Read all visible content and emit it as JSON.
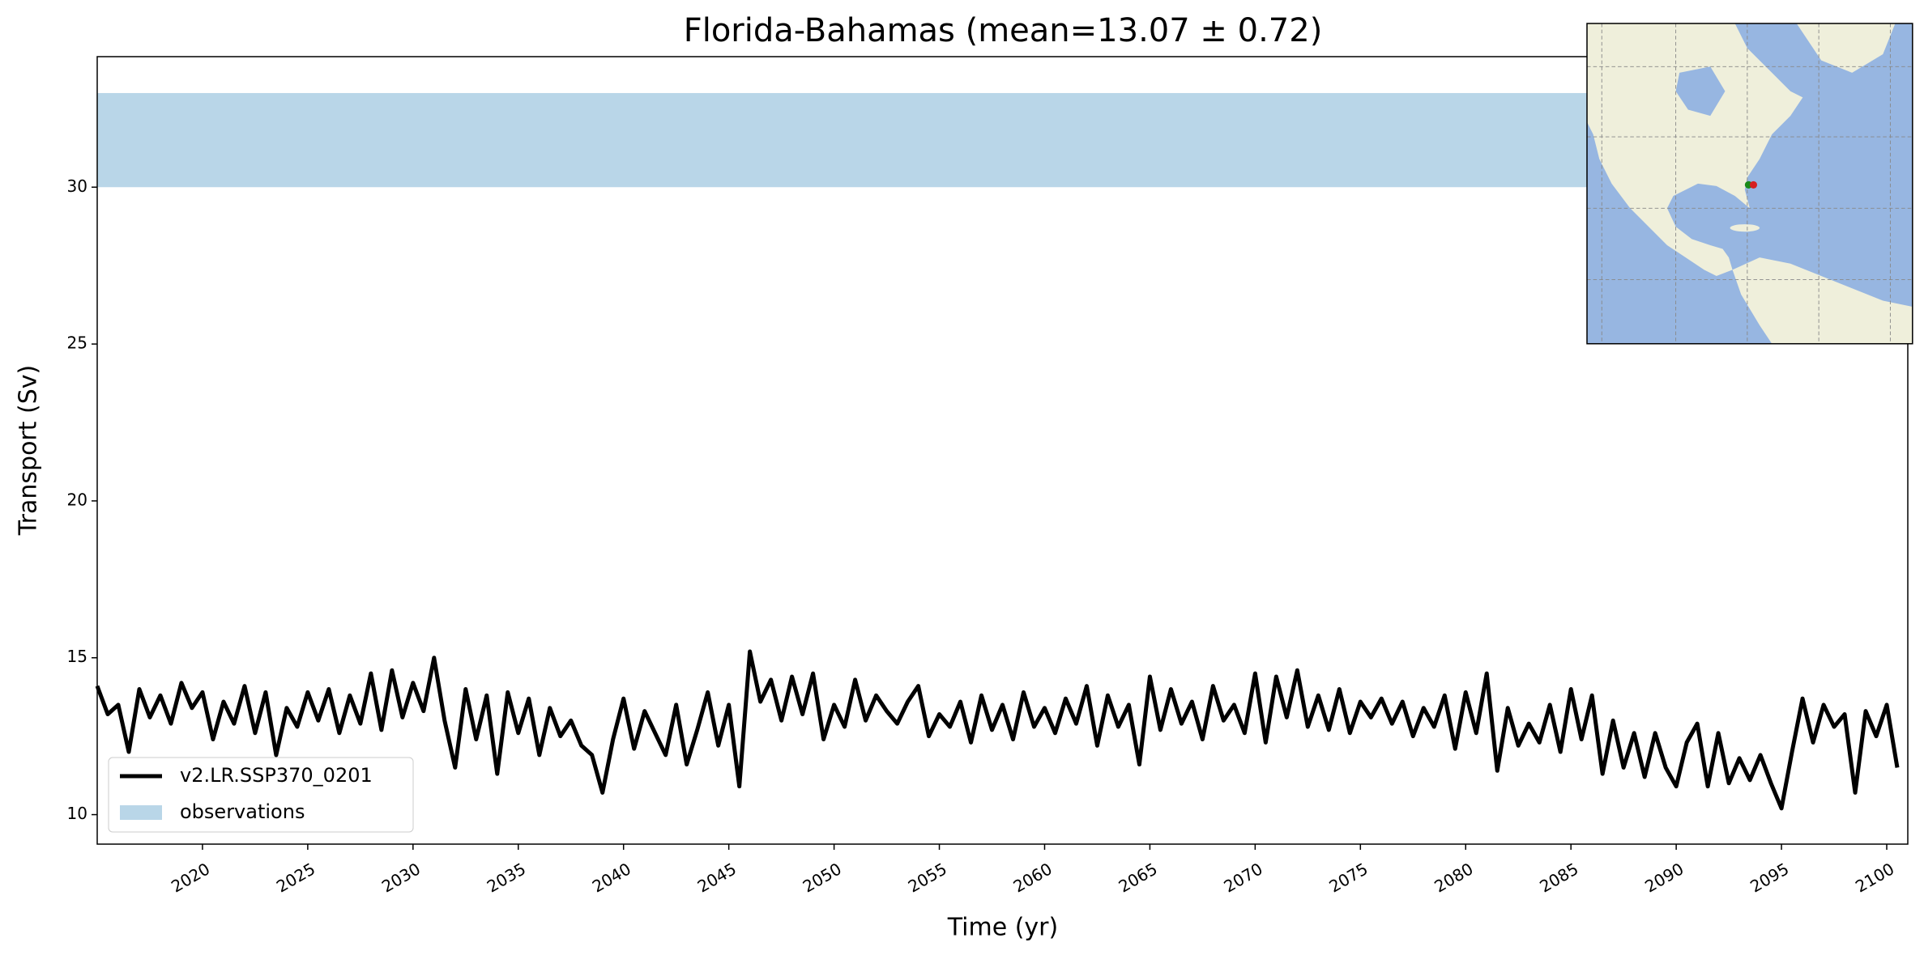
{
  "chart_data": {
    "type": "line",
    "title": "Florida-Bahamas (mean=13.07 ± 0.72)",
    "x_label": "Time (yr)",
    "y_label": "Transport (Sv)",
    "xlim": [
      2015,
      2101
    ],
    "ylim": [
      9.06,
      34.16
    ],
    "xticks": [
      2020,
      2025,
      2030,
      2035,
      2040,
      2045,
      2050,
      2055,
      2060,
      2065,
      2070,
      2075,
      2080,
      2085,
      2090,
      2095,
      2100
    ],
    "yticks": [
      10,
      15,
      20,
      25,
      30
    ],
    "legend": "lower left",
    "x": [
      2015,
      2015.5,
      2016,
      2016.5,
      2017,
      2017.5,
      2018,
      2018.5,
      2019,
      2019.5,
      2020,
      2020.5,
      2021,
      2021.5,
      2022,
      2022.5,
      2023,
      2023.5,
      2024,
      2024.5,
      2025,
      2025.5,
      2026,
      2026.5,
      2027,
      2027.5,
      2028,
      2028.5,
      2029,
      2029.5,
      2030,
      2030.5,
      2031,
      2031.5,
      2032,
      2032.5,
      2033,
      2033.5,
      2034,
      2034.5,
      2035,
      2035.5,
      2036,
      2036.5,
      2037,
      2037.5,
      2038,
      2038.5,
      2039,
      2039.5,
      2040,
      2040.5,
      2041,
      2041.5,
      2042,
      2042.5,
      2043,
      2043.5,
      2044,
      2044.5,
      2045,
      2045.5,
      2046,
      2046.5,
      2047,
      2047.5,
      2048,
      2048.5,
      2049,
      2049.5,
      2050,
      2050.5,
      2051,
      2051.5,
      2052,
      2052.5,
      2053,
      2053.5,
      2054,
      2054.5,
      2055,
      2055.5,
      2056,
      2056.5,
      2057,
      2057.5,
      2058,
      2058.5,
      2059,
      2059.5,
      2060,
      2060.5,
      2061,
      2061.5,
      2062,
      2062.5,
      2063,
      2063.5,
      2064,
      2064.5,
      2065,
      2065.5,
      2066,
      2066.5,
      2067,
      2067.5,
      2068,
      2068.5,
      2069,
      2069.5,
      2070,
      2070.5,
      2071,
      2071.5,
      2072,
      2072.5,
      2073,
      2073.5,
      2074,
      2074.5,
      2075,
      2075.5,
      2076,
      2076.5,
      2077,
      2077.5,
      2078,
      2078.5,
      2079,
      2079.5,
      2080,
      2080.5,
      2081,
      2081.5,
      2082,
      2082.5,
      2083,
      2083.5,
      2084,
      2084.5,
      2085,
      2085.5,
      2086,
      2086.5,
      2087,
      2087.5,
      2088,
      2088.5,
      2089,
      2089.5,
      2090,
      2090.5,
      2091,
      2091.5,
      2092,
      2092.5,
      2093,
      2093.5,
      2094,
      2094.5,
      2095,
      2095.5,
      2096,
      2096.5,
      2097,
      2097.5,
      2098,
      2098.5,
      2099,
      2099.5,
      2100,
      2100.5
    ],
    "series": [
      {
        "name": "v2.LR.SSP370_0201",
        "color": "#000000",
        "values": [
          14.1,
          13.2,
          13.5,
          12.0,
          14.0,
          13.1,
          13.8,
          12.9,
          14.2,
          13.4,
          13.9,
          12.4,
          13.6,
          12.9,
          14.1,
          12.6,
          13.9,
          11.9,
          13.4,
          12.8,
          13.9,
          13.0,
          14.0,
          12.6,
          13.8,
          12.9,
          14.5,
          12.7,
          14.6,
          13.1,
          14.2,
          13.3,
          15.0,
          13.0,
          11.5,
          14.0,
          12.4,
          13.8,
          11.3,
          13.9,
          12.6,
          13.7,
          11.9,
          13.4,
          12.5,
          13.0,
          12.2,
          11.9,
          10.7,
          12.4,
          13.7,
          12.1,
          13.3,
          12.6,
          11.9,
          13.5,
          11.6,
          12.7,
          13.9,
          12.2,
          13.5,
          10.9,
          15.2,
          13.6,
          14.3,
          13.0,
          14.4,
          13.2,
          14.5,
          12.4,
          13.5,
          12.8,
          14.3,
          13.0,
          13.8,
          13.3,
          12.9,
          13.6,
          14.1,
          12.5,
          13.2,
          12.8,
          13.6,
          12.3,
          13.8,
          12.7,
          13.5,
          12.4,
          13.9,
          12.8,
          13.4,
          12.6,
          13.7,
          12.9,
          14.1,
          12.2,
          13.8,
          12.8,
          13.5,
          11.6,
          14.4,
          12.7,
          14.0,
          12.9,
          13.6,
          12.4,
          14.1,
          13.0,
          13.5,
          12.6,
          14.5,
          12.3,
          14.4,
          13.1,
          14.6,
          12.8,
          13.8,
          12.7,
          14.0,
          12.6,
          13.6,
          13.1,
          13.7,
          12.9,
          13.6,
          12.5,
          13.4,
          12.8,
          13.8,
          12.1,
          13.9,
          12.6,
          14.5,
          11.4,
          13.4,
          12.2,
          12.9,
          12.3,
          13.5,
          12.0,
          14.0,
          12.4,
          13.8,
          11.3,
          13.0,
          11.5,
          12.6,
          11.2,
          12.6,
          11.5,
          10.9,
          12.3,
          12.9,
          10.9,
          12.6,
          11.0,
          11.8,
          11.1,
          11.9,
          11.0,
          10.2,
          12.0,
          13.7,
          12.3,
          13.5,
          12.8,
          13.2,
          10.7,
          13.3,
          12.5,
          13.5,
          11.5
        ]
      }
    ],
    "bands": [
      {
        "name": "observations",
        "color": "#b9d6e8",
        "range": [
          30,
          33
        ]
      }
    ]
  }
}
